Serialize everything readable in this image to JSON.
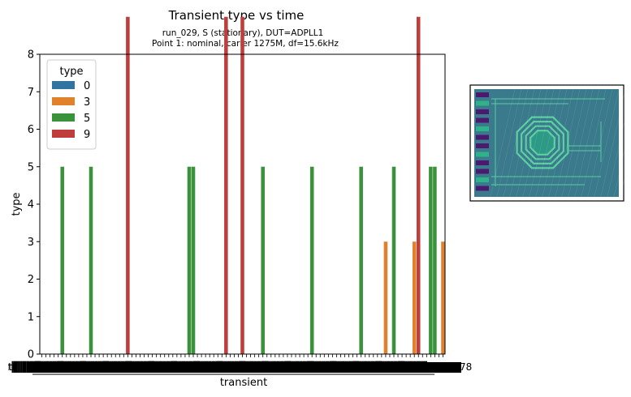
{
  "chart_data": {
    "type": "bar",
    "title": "Transient type vs time",
    "subtitle_line1": "run_029, S (stationary), DUT=ADPLL1",
    "subtitle_line2": "Point 1: nominal, carier 1275M,  df=15.6kHz",
    "xlabel": "transient",
    "ylabel": "type",
    "ylim": [
      0,
      8
    ],
    "yticks": [
      0,
      1,
      2,
      3,
      4,
      5,
      6,
      7,
      8
    ],
    "grid": false,
    "legend": {
      "title": "type",
      "placement": "top-left",
      "entries": [
        {
          "label": "0",
          "color": "#3274a1"
        },
        {
          "label": "3",
          "color": "#e1812c"
        },
        {
          "label": "5",
          "color": "#3a923a"
        },
        {
          "label": "9",
          "color": "#c03d3e"
        }
      ]
    },
    "hue_colors": {
      "0": "#3274a1",
      "3": "#e1812c",
      "5": "#3a923a",
      "9": "#c03d3e"
    },
    "n_transients": 99,
    "transient_label_prefix": "tt",
    "last_tick_label_fragment": "78",
    "events": [
      {
        "index": 5,
        "type": 5
      },
      {
        "index": 12,
        "type": 5
      },
      {
        "index": 21,
        "type": 9
      },
      {
        "index": 36,
        "type": 5
      },
      {
        "index": 37,
        "type": 5
      },
      {
        "index": 45,
        "type": 9
      },
      {
        "index": 49,
        "type": 9
      },
      {
        "index": 54,
        "type": 5
      },
      {
        "index": 66,
        "type": 5
      },
      {
        "index": 78,
        "type": 5
      },
      {
        "index": 84,
        "type": 3
      },
      {
        "index": 86,
        "type": 5
      },
      {
        "index": 91,
        "type": 3
      },
      {
        "index": 92,
        "type": 9
      },
      {
        "index": 95,
        "type": 5
      },
      {
        "index": 96,
        "type": 5
      },
      {
        "index": 98,
        "type": 3
      }
    ]
  },
  "inset": {
    "background": "#3a7a8c",
    "pad_dark_color": "#4b1a6e",
    "pad_light_color": "#2fb28a",
    "trace_color": "#5ad0a0"
  }
}
